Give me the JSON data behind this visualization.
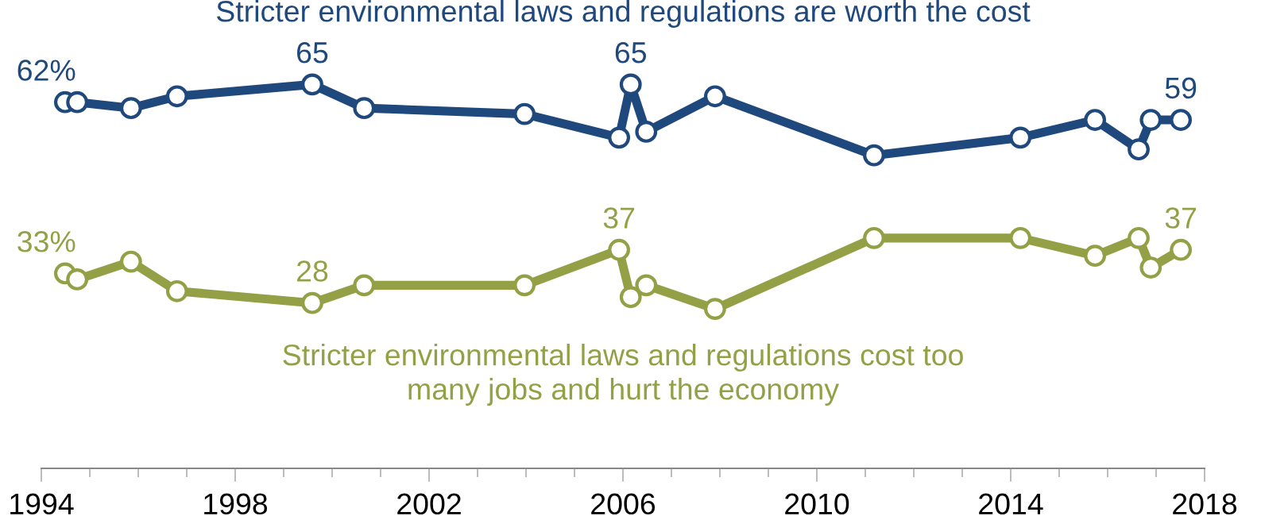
{
  "chart_data": {
    "type": "line",
    "marker": "circle",
    "line_style": "solid",
    "grid": false,
    "legend": false,
    "tick_labels": "x",
    "xlim": [
      1994,
      2018
    ],
    "xticks": [
      1994,
      {
        "value": 1995,
        "label": null
      },
      {
        "value": 1996,
        "label": null
      },
      {
        "value": 1997,
        "label": null
      },
      1998,
      {
        "value": 1999,
        "label": null
      },
      {
        "value": 2000,
        "label": null
      },
      {
        "value": 2001,
        "label": null
      },
      2002,
      {
        "value": 2003,
        "label": null
      },
      {
        "value": 2004,
        "label": null
      },
      {
        "value": 2005,
        "label": null
      },
      2006,
      {
        "value": 2007,
        "label": null
      },
      {
        "value": 2008,
        "label": null
      },
      {
        "value": 2009,
        "label": null
      },
      2010,
      {
        "value": 2011,
        "label": null
      },
      {
        "value": 2012,
        "label": null
      },
      {
        "value": 2013,
        "label": null
      },
      2014,
      {
        "value": 2015,
        "label": null
      },
      {
        "value": 2016,
        "label": null
      },
      {
        "value": 2017,
        "label": null
      },
      2018
    ],
    "x": [
      1994.49,
      1994.74,
      1995.85,
      1996.8,
      1999.59,
      2000.66,
      2003.97,
      2005.92,
      2006.16,
      2006.48,
      2007.9,
      2011.18,
      2014.2,
      2015.74,
      2016.64,
      2016.89,
      2017.51
    ],
    "series": [
      {
        "name": "Stricter environmental laws and regulations are worth the cost",
        "color": "#1f497d",
        "values": [
          62,
          62,
          61,
          63,
          65,
          61,
          60,
          56,
          65,
          57,
          63,
          53,
          56,
          59,
          54,
          59,
          59
        ],
        "value_labels": [
          "62%",
          null,
          null,
          null,
          "65",
          null,
          null,
          null,
          "65",
          null,
          null,
          null,
          null,
          null,
          null,
          null,
          "59"
        ]
      },
      {
        "name": "Stricter environmental laws and regulations cost too\nmany jobs and hurt the economy",
        "color": "#94a045",
        "values": [
          33,
          32,
          35,
          30,
          28,
          31,
          31,
          37,
          29,
          31,
          27,
          39,
          39,
          36,
          39,
          34,
          37
        ],
        "value_labels": [
          "33%",
          null,
          null,
          null,
          "28",
          null,
          null,
          "37",
          null,
          null,
          null,
          null,
          null,
          null,
          null,
          null,
          "37"
        ]
      }
    ]
  }
}
